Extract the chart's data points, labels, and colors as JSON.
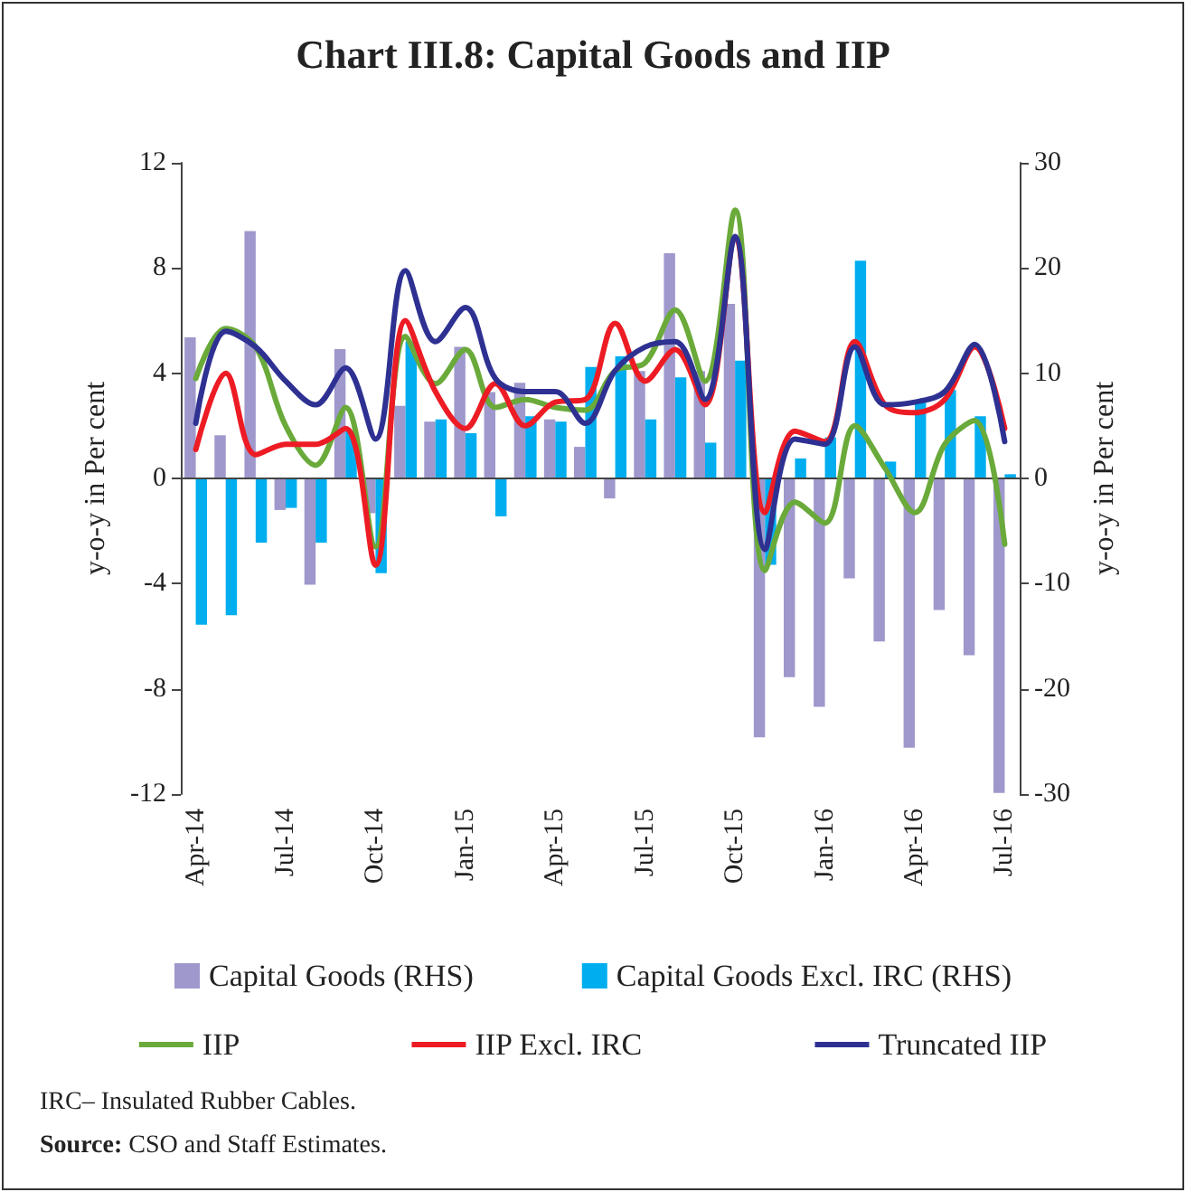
{
  "chart_data": {
    "type": "line",
    "title": "Chart III.8: Capital Goods and IIP",
    "categories": [
      "Apr-14",
      null,
      null,
      "Jul-14",
      null,
      null,
      "Oct-14",
      null,
      null,
      "Jan-15",
      null,
      null,
      "Apr-15",
      null,
      null,
      "Jul-15",
      null,
      null,
      "Oct-15",
      null,
      null,
      "Jan-16",
      null,
      null,
      "Apr-16",
      null,
      null,
      "Jul-16"
    ],
    "series": [
      {
        "name": "Capital Goods (RHS)",
        "type": "bar",
        "axis": "y2",
        "color": "#9e98cc",
        "values": [
          13.4,
          4.1,
          23.5,
          -3.0,
          -10.1,
          12.3,
          -3.3,
          6.9,
          5.4,
          12.5,
          8.2,
          9.1,
          5.6,
          3.0,
          -1.9,
          10.2,
          21.4,
          10.2,
          16.6,
          -24.6,
          -18.9,
          -21.7,
          -9.5,
          -15.5,
          -25.6,
          -12.5,
          -16.8,
          -29.9
        ]
      },
      {
        "name": "Capital Goods Excl. IRC (RHS)",
        "type": "bar",
        "axis": "y2",
        "color": "#00aeef",
        "values": [
          -13.9,
          -13.0,
          -6.1,
          -2.8,
          -6.1,
          4.5,
          -9.0,
          13.0,
          5.6,
          4.3,
          -3.6,
          5.9,
          5.4,
          10.6,
          11.6,
          5.6,
          9.6,
          3.4,
          11.2,
          -8.2,
          1.9,
          3.9,
          20.7,
          1.6,
          7.3,
          8.4,
          5.9,
          0.4
        ]
      },
      {
        "name": "IIP",
        "color": "#6aaa3a",
        "values": [
          3.8,
          5.7,
          5.0,
          2.0,
          0.5,
          2.7,
          -2.6,
          5.4,
          3.6,
          4.9,
          2.7,
          3.0,
          2.7,
          2.6,
          4.1,
          4.4,
          6.4,
          3.7,
          10.2,
          -3.5,
          -0.9,
          -1.7,
          2.0,
          0.4,
          -1.3,
          1.3,
          2.2,
          -2.5
        ]
      },
      {
        "name": "IIP Excl. IRC",
        "color": "#ed1c24",
        "values": [
          1.1,
          4.0,
          0.9,
          1.3,
          1.3,
          1.9,
          -3.3,
          6.0,
          3.3,
          1.9,
          3.6,
          2.0,
          2.9,
          3.0,
          5.9,
          3.7,
          4.9,
          2.8,
          9.1,
          -1.3,
          1.8,
          1.4,
          5.2,
          2.8,
          2.5,
          3.0,
          5.0,
          1.9
        ]
      },
      {
        "name": "Truncated IIP",
        "color": "#2e3192",
        "values": [
          2.1,
          5.6,
          5.0,
          3.7,
          2.8,
          4.2,
          1.5,
          7.9,
          5.2,
          6.5,
          3.8,
          3.3,
          3.3,
          2.1,
          4.1,
          5.0,
          5.2,
          3.0,
          9.2,
          -2.7,
          1.5,
          1.3,
          5.0,
          2.8,
          2.9,
          3.3,
          5.1,
          1.4
        ]
      }
    ],
    "ylabel": "y-o-y in Per cent",
    "y2label": "y-o-y in Per cent",
    "ylim": [
      -12,
      12
    ],
    "yticks": [
      -12,
      -8,
      -4,
      0,
      4,
      8,
      12
    ],
    "y2lim": [
      -30,
      30
    ],
    "y2ticks": [
      -30,
      -20,
      -10,
      0,
      10,
      20,
      30
    ],
    "ref_lines": [
      {
        "axis": "y",
        "value": 0,
        "color": "#444444"
      }
    ],
    "grid": false,
    "legend": "bottom",
    "marker": "none",
    "line_style": "solid",
    "annotations": [
      "IRC– Insulated Rubber Cables.",
      "Source: CSO and Staff Estimates."
    ]
  }
}
